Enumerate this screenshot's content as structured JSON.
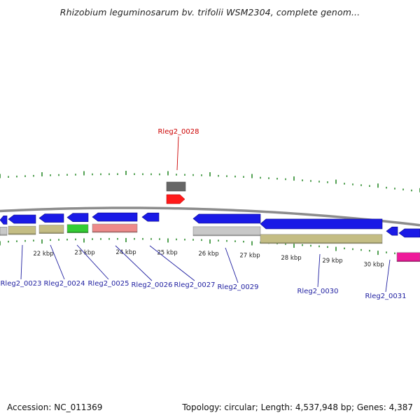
{
  "header": {
    "title": "Rhizobium leguminosarum bv. trifolii WSM2304, complete genom..."
  },
  "footer": {
    "accession": "Accession: NC_011369",
    "summary": "Topology: circular; Length: 4,537,948 bp; Genes: 4,387"
  },
  "colors": {
    "background": "#ffffff",
    "backbone": "#8c8c8c",
    "ticks": "#2a8a2a",
    "gene_label": "#1e1ea0",
    "highlight_label": "#cc0000",
    "cds_blue": "#1a1ae6",
    "feature_khaki": "#c4bd84",
    "feature_green": "#33cc33",
    "feature_salmon": "#ee8a8a",
    "feature_gray": "#c8c8c8",
    "feature_darkgray": "#666666",
    "feature_red": "#ff1a1a",
    "feature_magenta": "#ee1a9a"
  },
  "kbp_labels": [
    "22 kbp",
    "23 kbp",
    "24 kbp",
    "25 kbp",
    "26 kbp",
    "27 kbp",
    "28 kbp",
    "29 kbp",
    "30 kbp"
  ],
  "gene_labels": [
    {
      "id": "Rleg2_0023",
      "tone": "normal"
    },
    {
      "id": "Rleg2_0024",
      "tone": "normal"
    },
    {
      "id": "Rleg2_0025",
      "tone": "normal"
    },
    {
      "id": "Rleg2_0026",
      "tone": "normal"
    },
    {
      "id": "Rleg2_0027",
      "tone": "normal"
    },
    {
      "id": "Rleg2_0029",
      "tone": "normal"
    },
    {
      "id": "Rleg2_0030",
      "tone": "normal"
    },
    {
      "id": "Rleg2_0031",
      "tone": "normal"
    },
    {
      "id": "Rleg2_0028",
      "tone": "highlight"
    }
  ]
}
